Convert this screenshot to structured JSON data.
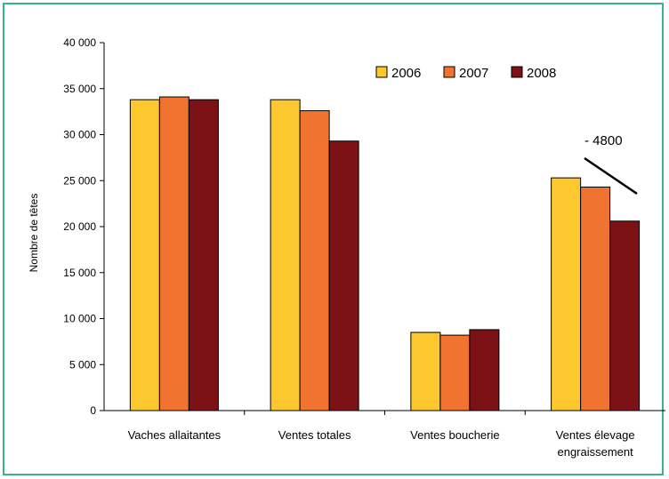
{
  "chart_data": {
    "type": "bar",
    "ylabel": "Nombre de têtes",
    "ylim": [
      0,
      40000
    ],
    "yticks": [
      "0",
      "5 000",
      "10 000",
      "15 000",
      "20 000",
      "25 000",
      "30 000",
      "35 000",
      "40 000"
    ],
    "categories": [
      [
        "Vaches allaitantes"
      ],
      [
        "Ventes totales"
      ],
      [
        "Ventes boucherie"
      ],
      [
        "Ventes élevage",
        "engraissement"
      ]
    ],
    "series": [
      {
        "name": "2006",
        "color": "#fcc82e",
        "values": [
          33800,
          33800,
          8500,
          25300
        ]
      },
      {
        "name": "2007",
        "color": "#f07430",
        "values": [
          34100,
          32600,
          8200,
          24300
        ]
      },
      {
        "name": "2008",
        "color": "#7c1216",
        "values": [
          33800,
          29300,
          8800,
          20600
        ]
      }
    ],
    "legend_position": "top-right",
    "grid": false,
    "annotation": {
      "text": "- 4800",
      "category": "Ventes élevage engraissement"
    }
  }
}
